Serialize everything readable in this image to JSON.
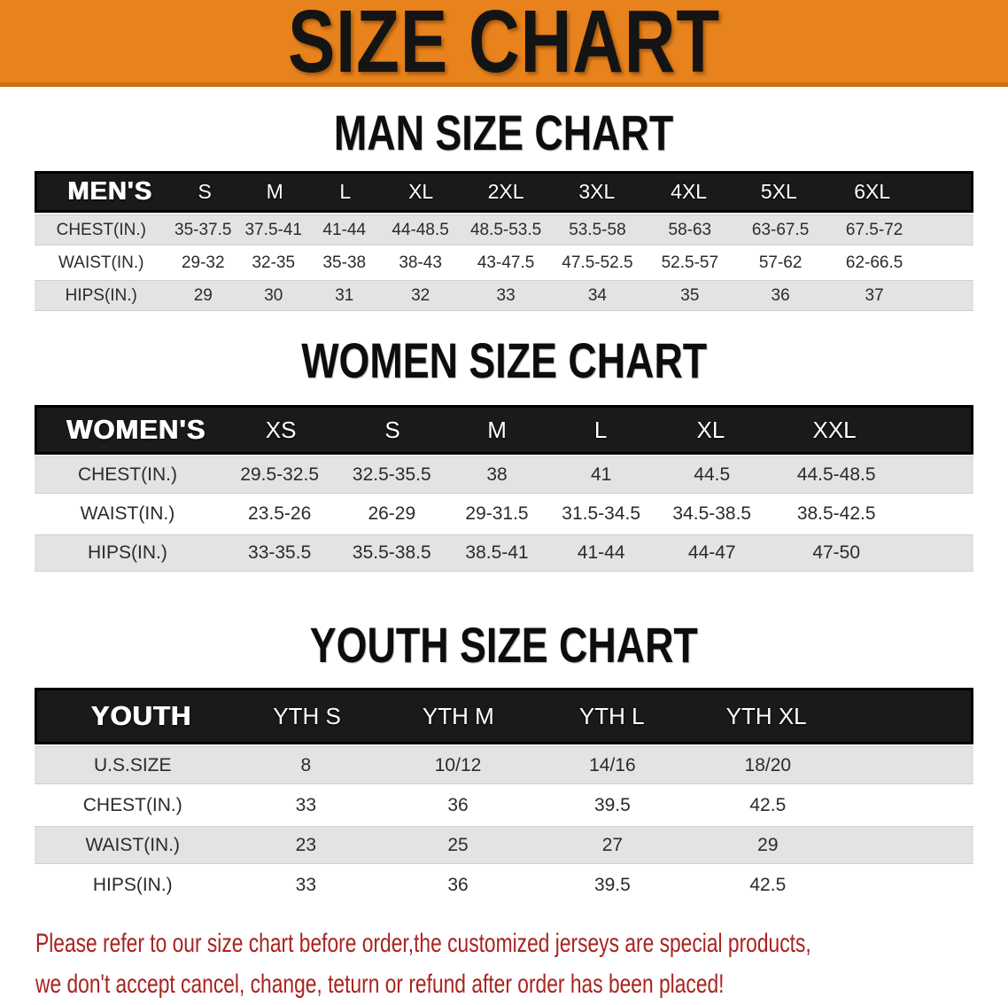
{
  "banner": {
    "title": "SIZE CHART",
    "bg_color": "#E8821C",
    "text_color": "#141414"
  },
  "sections": [
    {
      "title": "MAN SIZE CHART",
      "header_label": "MEN'S",
      "columns": [
        "S",
        "M",
        "L",
        "XL",
        "2XL",
        "3XL",
        "4XL",
        "5XL",
        "6XL"
      ],
      "rows": [
        {
          "label": "CHEST(IN.)",
          "values": [
            "35-37.5",
            "37.5-41",
            "41-44",
            "44-48.5",
            "48.5-53.5",
            "53.5-58",
            "58-63",
            "63-67.5",
            "67.5-72"
          ]
        },
        {
          "label": "WAIST(IN.)",
          "values": [
            "29-32",
            "32-35",
            "35-38",
            "38-43",
            "43-47.5",
            "47.5-52.5",
            "52.5-57",
            "57-62",
            "62-66.5"
          ]
        },
        {
          "label": "HIPS(IN.)",
          "values": [
            "29",
            "30",
            "31",
            "32",
            "33",
            "34",
            "35",
            "36",
            "37"
          ]
        }
      ]
    },
    {
      "title": "WOMEN SIZE CHART",
      "header_label": "WOMEN'S",
      "columns": [
        "XS",
        "S",
        "M",
        "L",
        "XL",
        "XXL"
      ],
      "rows": [
        {
          "label": "CHEST(IN.)",
          "values": [
            "29.5-32.5",
            "32.5-35.5",
            "38",
            "41",
            "44.5",
            "44.5-48.5"
          ]
        },
        {
          "label": "WAIST(IN.)",
          "values": [
            "23.5-26",
            "26-29",
            "29-31.5",
            "31.5-34.5",
            "34.5-38.5",
            "38.5-42.5"
          ]
        },
        {
          "label": "HIPS(IN.)",
          "values": [
            "33-35.5",
            "35.5-38.5",
            "38.5-41",
            "41-44",
            "44-47",
            "47-50"
          ]
        }
      ]
    },
    {
      "title": "YOUTH SIZE CHART",
      "header_label": "YOUTH",
      "columns": [
        "YTH S",
        "YTH M",
        "YTH L",
        "YTH XL"
      ],
      "rows": [
        {
          "label": "U.S.SIZE",
          "values": [
            "8",
            "10/12",
            "14/16",
            "18/20"
          ]
        },
        {
          "label": "CHEST(IN.)",
          "values": [
            "33",
            "36",
            "39.5",
            "42.5"
          ]
        },
        {
          "label": "WAIST(IN.)",
          "values": [
            "23",
            "25",
            "27",
            "29"
          ]
        },
        {
          "label": "HIPS(IN.)",
          "values": [
            "33",
            "36",
            "39.5",
            "42.5"
          ]
        }
      ]
    }
  ],
  "footer": {
    "color": "#A8231F",
    "line1": "Please refer to our size chart before order,the customized jerseys are special products,",
    "line2": "we don't accept cancel, change, teturn or refund after order has been placed!"
  },
  "chart_data": [
    {
      "type": "table",
      "title": "MAN SIZE CHART",
      "columns": [
        "MEN'S",
        "S",
        "M",
        "L",
        "XL",
        "2XL",
        "3XL",
        "4XL",
        "5XL",
        "6XL"
      ],
      "rows": [
        [
          "CHEST(IN.)",
          "35-37.5",
          "37.5-41",
          "41-44",
          "44-48.5",
          "48.5-53.5",
          "53.5-58",
          "58-63",
          "63-67.5",
          "67.5-72"
        ],
        [
          "WAIST(IN.)",
          "29-32",
          "32-35",
          "35-38",
          "38-43",
          "43-47.5",
          "47.5-52.5",
          "52.5-57",
          "57-62",
          "62-66.5"
        ],
        [
          "HIPS(IN.)",
          "29",
          "30",
          "31",
          "32",
          "33",
          "34",
          "35",
          "36",
          "37"
        ]
      ]
    },
    {
      "type": "table",
      "title": "WOMEN SIZE CHART",
      "columns": [
        "WOMEN'S",
        "XS",
        "S",
        "M",
        "L",
        "XL",
        "XXL"
      ],
      "rows": [
        [
          "CHEST(IN.)",
          "29.5-32.5",
          "32.5-35.5",
          "38",
          "41",
          "44.5",
          "44.5-48.5"
        ],
        [
          "WAIST(IN.)",
          "23.5-26",
          "26-29",
          "29-31.5",
          "31.5-34.5",
          "34.5-38.5",
          "38.5-42.5"
        ],
        [
          "HIPS(IN.)",
          "33-35.5",
          "35.5-38.5",
          "38.5-41",
          "41-44",
          "44-47",
          "47-50"
        ]
      ]
    },
    {
      "type": "table",
      "title": "YOUTH SIZE CHART",
      "columns": [
        "YOUTH",
        "YTH S",
        "YTH M",
        "YTH L",
        "YTH XL"
      ],
      "rows": [
        [
          "U.S.SIZE",
          "8",
          "10/12",
          "14/16",
          "18/20"
        ],
        [
          "CHEST(IN.)",
          "33",
          "36",
          "39.5",
          "42.5"
        ],
        [
          "WAIST(IN.)",
          "23",
          "25",
          "27",
          "29"
        ],
        [
          "HIPS(IN.)",
          "33",
          "36",
          "39.5",
          "42.5"
        ]
      ]
    }
  ]
}
